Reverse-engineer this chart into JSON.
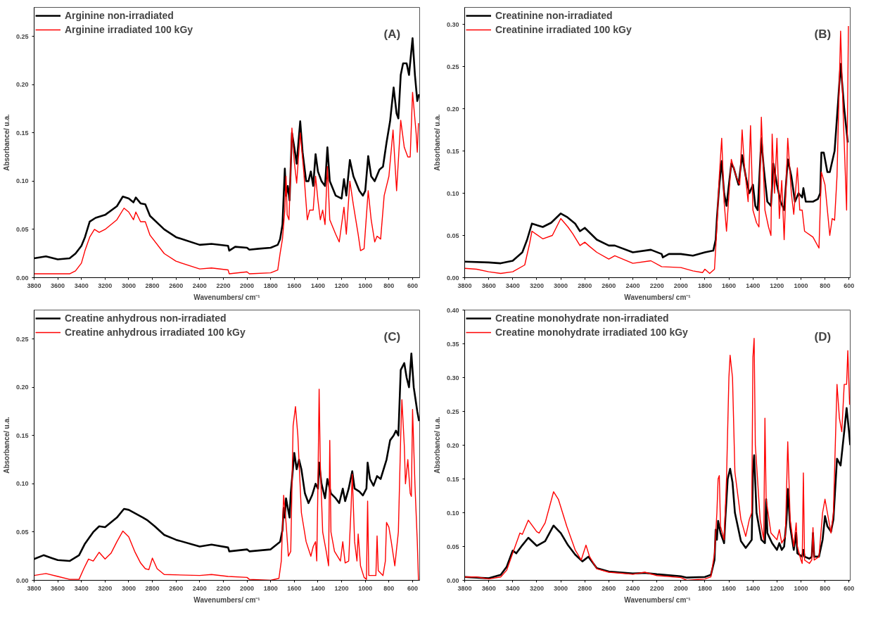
{
  "chart_data": [
    {
      "type": "line",
      "title": null,
      "annotations": [
        "(A)"
      ],
      "xlabel": "Wavenumbers/ cm⁻¹",
      "ylabel": "Absorbance/ u.a.",
      "xlim": [
        3800,
        540
      ],
      "ylim": [
        0,
        0.28
      ],
      "xticks": [
        3800,
        3600,
        3400,
        3200,
        3000,
        2800,
        2600,
        2400,
        2200,
        2000,
        1800,
        1600,
        1400,
        1200,
        1000,
        800,
        600
      ],
      "yticks": [
        {
          "value": 0,
          "label": "0.00"
        },
        0.05,
        {
          "value": 0.1,
          "label": "0.10"
        },
        0.15,
        {
          "value": 0.2,
          "label": "0.20"
        },
        0.25
      ],
      "grid": false,
      "legend": "top left",
      "line_style": "solid",
      "series": [
        {
          "name": "Arginine non-irradiated",
          "color": "#000000",
          "x": [
            3800,
            3700,
            3600,
            3500,
            3450,
            3400,
            3370,
            3330,
            3280,
            3200,
            3100,
            3050,
            3000,
            2960,
            2940,
            2900,
            2860,
            2820,
            2700,
            2600,
            2400,
            2300,
            2160,
            2150,
            2100,
            2000,
            1980,
            1900,
            1800,
            1740,
            1720,
            1700,
            1680,
            1670,
            1655,
            1640,
            1620,
            1600,
            1580,
            1550,
            1530,
            1500,
            1480,
            1460,
            1440,
            1420,
            1400,
            1370,
            1340,
            1320,
            1300,
            1250,
            1200,
            1180,
            1160,
            1130,
            1100,
            1050,
            1020,
            1000,
            975,
            950,
            920,
            880,
            850,
            820,
            790,
            760,
            735,
            720,
            700,
            680,
            650,
            630,
            600,
            580,
            560,
            545
          ],
          "values": [
            0.02,
            0.022,
            0.019,
            0.02,
            0.025,
            0.033,
            0.042,
            0.058,
            0.062,
            0.065,
            0.074,
            0.084,
            0.082,
            0.078,
            0.083,
            0.077,
            0.076,
            0.064,
            0.05,
            0.042,
            0.034,
            0.035,
            0.033,
            0.028,
            0.032,
            0.031,
            0.029,
            0.03,
            0.031,
            0.034,
            0.04,
            0.055,
            0.113,
            0.085,
            0.095,
            0.08,
            0.15,
            0.135,
            0.118,
            0.162,
            0.13,
            0.1,
            0.1,
            0.11,
            0.095,
            0.128,
            0.11,
            0.1,
            0.095,
            0.135,
            0.1,
            0.085,
            0.082,
            0.102,
            0.085,
            0.122,
            0.105,
            0.09,
            0.085,
            0.09,
            0.126,
            0.105,
            0.1,
            0.112,
            0.115,
            0.14,
            0.162,
            0.197,
            0.17,
            0.165,
            0.21,
            0.222,
            0.222,
            0.21,
            0.248,
            0.21,
            0.183,
            0.19
          ]
        },
        {
          "name": "Arginine irradiated 100 kGy",
          "color": "#ff0000",
          "x": [
            3800,
            3600,
            3500,
            3450,
            3400,
            3370,
            3330,
            3290,
            3250,
            3200,
            3100,
            3040,
            3000,
            2960,
            2940,
            2900,
            2860,
            2820,
            2700,
            2600,
            2400,
            2300,
            2160,
            2150,
            2000,
            1980,
            1800,
            1740,
            1720,
            1700,
            1680,
            1670,
            1660,
            1645,
            1620,
            1600,
            1580,
            1550,
            1520,
            1490,
            1470,
            1440,
            1420,
            1400,
            1380,
            1360,
            1340,
            1320,
            1300,
            1250,
            1220,
            1180,
            1160,
            1130,
            1100,
            1060,
            1040,
            1010,
            975,
            950,
            920,
            900,
            870,
            840,
            800,
            765,
            735,
            700,
            670,
            640,
            620,
            600,
            570,
            560,
            550
          ],
          "values": [
            0.004,
            0.004,
            0.004,
            0.007,
            0.015,
            0.028,
            0.042,
            0.05,
            0.047,
            0.05,
            0.06,
            0.072,
            0.068,
            0.06,
            0.068,
            0.058,
            0.058,
            0.044,
            0.025,
            0.017,
            0.009,
            0.01,
            0.008,
            0.004,
            0.006,
            0.004,
            0.005,
            0.008,
            0.025,
            0.04,
            0.07,
            0.105,
            0.065,
            0.06,
            0.155,
            0.12,
            0.098,
            0.15,
            0.11,
            0.06,
            0.07,
            0.07,
            0.105,
            0.08,
            0.06,
            0.07,
            0.055,
            0.115,
            0.06,
            0.045,
            0.037,
            0.073,
            0.045,
            0.1,
            0.075,
            0.045,
            0.028,
            0.03,
            0.09,
            0.06,
            0.037,
            0.043,
            0.04,
            0.085,
            0.105,
            0.153,
            0.09,
            0.163,
            0.135,
            0.125,
            0.125,
            0.192,
            0.15,
            0.13,
            0.16
          ]
        }
      ]
    },
    {
      "type": "line",
      "title": null,
      "annotations": [
        "(B)"
      ],
      "xlabel": "Wavenumbers/ cm⁻¹",
      "ylabel": "Absorbance/ u.a.",
      "xlim": [
        3800,
        590
      ],
      "ylim": [
        0,
        0.32
      ],
      "xticks": [
        3800,
        3600,
        3400,
        3200,
        3000,
        2800,
        2600,
        2400,
        2200,
        2000,
        1800,
        1600,
        1400,
        1200,
        1000,
        800,
        600
      ],
      "yticks": [
        {
          "value": 0,
          "label": "0.00"
        },
        0.05,
        {
          "value": 0.1,
          "label": "0.10"
        },
        0.15,
        {
          "value": 0.2,
          "label": "0.20"
        },
        0.25,
        {
          "value": 0.3,
          "label": "0.30"
        }
      ],
      "grid": false,
      "legend": "top left",
      "line_style": "solid",
      "series": [
        {
          "name": "Creatinine non-irradiated",
          "color": "#000000",
          "x": [
            3800,
            3600,
            3500,
            3400,
            3320,
            3280,
            3240,
            3150,
            3080,
            3000,
            2950,
            2880,
            2840,
            2800,
            2700,
            2600,
            2550,
            2400,
            2250,
            2160,
            2150,
            2100,
            2000,
            1900,
            1800,
            1730,
            1710,
            1700,
            1680,
            1660,
            1640,
            1620,
            1580,
            1560,
            1520,
            1490,
            1460,
            1430,
            1400,
            1380,
            1360,
            1330,
            1310,
            1280,
            1250,
            1230,
            1200,
            1170,
            1140,
            1110,
            1080,
            1050,
            1020,
            990,
            980,
            960,
            900,
            860,
            840,
            830,
            810,
            780,
            760,
            720,
            690,
            670,
            640,
            610
          ],
          "values": [
            0.019,
            0.018,
            0.017,
            0.02,
            0.03,
            0.045,
            0.064,
            0.06,
            0.065,
            0.076,
            0.072,
            0.064,
            0.055,
            0.059,
            0.045,
            0.038,
            0.038,
            0.03,
            0.033,
            0.028,
            0.024,
            0.028,
            0.028,
            0.026,
            0.03,
            0.032,
            0.045,
            0.07,
            0.11,
            0.138,
            0.1,
            0.085,
            0.135,
            0.13,
            0.11,
            0.145,
            0.12,
            0.1,
            0.11,
            0.085,
            0.08,
            0.165,
            0.13,
            0.09,
            0.085,
            0.135,
            0.11,
            0.09,
            0.08,
            0.14,
            0.12,
            0.09,
            0.1,
            0.095,
            0.106,
            0.09,
            0.09,
            0.093,
            0.1,
            0.148,
            0.148,
            0.125,
            0.125,
            0.15,
            0.21,
            0.253,
            0.2,
            0.16
          ]
        },
        {
          "name": "Creatinine irradiated 100 kGy",
          "color": "#ff0000",
          "x": [
            3800,
            3700,
            3600,
            3500,
            3400,
            3300,
            3260,
            3240,
            3150,
            3070,
            3000,
            2940,
            2900,
            2840,
            2800,
            2760,
            2700,
            2600,
            2550,
            2400,
            2250,
            2160,
            2000,
            1900,
            1820,
            1800,
            1760,
            1720,
            1700,
            1680,
            1660,
            1640,
            1620,
            1580,
            1540,
            1510,
            1490,
            1470,
            1440,
            1420,
            1400,
            1370,
            1350,
            1330,
            1300,
            1270,
            1250,
            1240,
            1220,
            1200,
            1180,
            1160,
            1140,
            1110,
            1080,
            1060,
            1030,
            1010,
            990,
            970,
            900,
            850,
            830,
            800,
            780,
            760,
            740,
            720,
            700,
            670,
            650,
            620,
            605
          ],
          "values": [
            0.011,
            0.01,
            0.007,
            0.005,
            0.007,
            0.015,
            0.04,
            0.055,
            0.046,
            0.05,
            0.07,
            0.06,
            0.052,
            0.038,
            0.042,
            0.037,
            0.03,
            0.022,
            0.026,
            0.017,
            0.02,
            0.013,
            0.012,
            0.008,
            0.006,
            0.01,
            0.005,
            0.01,
            0.06,
            0.12,
            0.165,
            0.09,
            0.055,
            0.14,
            0.12,
            0.11,
            0.175,
            0.13,
            0.09,
            0.18,
            0.08,
            0.065,
            0.06,
            0.19,
            0.08,
            0.06,
            0.05,
            0.17,
            0.1,
            0.165,
            0.07,
            0.115,
            0.045,
            0.165,
            0.1,
            0.075,
            0.13,
            0.08,
            0.08,
            0.055,
            0.048,
            0.035,
            0.125,
            0.11,
            0.08,
            0.05,
            0.07,
            0.068,
            0.12,
            0.292,
            0.2,
            0.08,
            0.298
          ]
        }
      ]
    },
    {
      "type": "line",
      "title": null,
      "annotations": [
        "(C)"
      ],
      "xlabel": "Wavenumbers/ cm⁻¹",
      "ylabel": "Absorbance/ u.a.",
      "xlim": [
        3800,
        540
      ],
      "ylim": [
        0,
        0.28
      ],
      "xticks": [
        3800,
        3600,
        3400,
        3200,
        3000,
        2800,
        2600,
        2400,
        2200,
        2000,
        1800,
        1600,
        1400,
        1200,
        1000,
        800,
        600
      ],
      "yticks": [
        {
          "value": 0,
          "label": "0.00"
        },
        0.05,
        {
          "value": 0.1,
          "label": "0.10"
        },
        0.15,
        {
          "value": 0.2,
          "label": "0.20"
        },
        0.25
      ],
      "grid": false,
      "legend": "top left",
      "line_style": "solid",
      "series": [
        {
          "name": "Creatine anhydrous non-irradiated",
          "color": "#000000",
          "x": [
            3800,
            3720,
            3650,
            3600,
            3500,
            3420,
            3370,
            3300,
            3250,
            3200,
            3100,
            3040,
            3000,
            2940,
            2880,
            2840,
            2780,
            2700,
            2600,
            2400,
            2300,
            2160,
            2150,
            2000,
            1980,
            1800,
            1720,
            1700,
            1690,
            1680,
            1670,
            1640,
            1630,
            1600,
            1580,
            1560,
            1540,
            1510,
            1480,
            1450,
            1420,
            1400,
            1390,
            1370,
            1340,
            1320,
            1290,
            1250,
            1220,
            1190,
            1170,
            1140,
            1110,
            1090,
            1050,
            1020,
            990,
            980,
            960,
            930,
            900,
            870,
            820,
            790,
            760,
            740,
            720,
            700,
            670,
            650,
            630,
            610,
            590,
            560,
            545
          ],
          "values": [
            0.022,
            0.026,
            0.023,
            0.021,
            0.02,
            0.026,
            0.038,
            0.05,
            0.056,
            0.055,
            0.065,
            0.074,
            0.073,
            0.069,
            0.065,
            0.062,
            0.056,
            0.047,
            0.042,
            0.035,
            0.037,
            0.034,
            0.03,
            0.032,
            0.03,
            0.032,
            0.04,
            0.052,
            0.075,
            0.065,
            0.085,
            0.065,
            0.09,
            0.132,
            0.115,
            0.125,
            0.115,
            0.09,
            0.08,
            0.088,
            0.1,
            0.095,
            0.122,
            0.1,
            0.085,
            0.105,
            0.09,
            0.085,
            0.08,
            0.095,
            0.082,
            0.095,
            0.113,
            0.095,
            0.092,
            0.088,
            0.095,
            0.122,
            0.105,
            0.098,
            0.108,
            0.105,
            0.125,
            0.145,
            0.15,
            0.155,
            0.15,
            0.218,
            0.225,
            0.21,
            0.2,
            0.235,
            0.2,
            0.175,
            0.165
          ]
        },
        {
          "name": "Creatine anhydrous irradiated 100 kGy",
          "color": "#ff0000",
          "x": [
            3800,
            3700,
            3600,
            3500,
            3420,
            3380,
            3340,
            3300,
            3250,
            3200,
            3150,
            3100,
            3050,
            3000,
            2950,
            2900,
            2860,
            2830,
            2800,
            2760,
            2700,
            2400,
            2300,
            2160,
            2000,
            1980,
            1800,
            1730,
            1710,
            1690,
            1670,
            1650,
            1630,
            1610,
            1590,
            1570,
            1540,
            1500,
            1460,
            1440,
            1420,
            1410,
            1400,
            1390,
            1380,
            1360,
            1330,
            1310,
            1300,
            1290,
            1260,
            1210,
            1190,
            1170,
            1140,
            1120,
            1110,
            1090,
            1070,
            1060,
            1040,
            1010,
            990,
            980,
            970,
            930,
            910,
            900,
            890,
            850,
            830,
            820,
            800,
            780,
            750,
            720,
            700,
            690,
            670,
            660,
            640,
            620,
            610,
            600,
            580,
            560,
            550
          ],
          "values": [
            0.005,
            0.007,
            0.004,
            0.001,
            0.001,
            0.012,
            0.022,
            0.02,
            0.029,
            0.022,
            0.028,
            0.04,
            0.051,
            0.045,
            0.03,
            0.018,
            0.012,
            0.011,
            0.023,
            0.012,
            0.006,
            0.005,
            0.006,
            0.004,
            0.003,
            0.001,
            0.0,
            0.002,
            0.02,
            0.088,
            0.06,
            0.025,
            0.03,
            0.16,
            0.18,
            0.15,
            0.07,
            0.04,
            0.025,
            0.035,
            0.04,
            0.02,
            0.1,
            0.198,
            0.12,
            0.05,
            0.03,
            0.015,
            0.145,
            0.05,
            0.03,
            0.02,
            0.04,
            0.018,
            0.02,
            0.075,
            0.11,
            0.04,
            0.02,
            0.048,
            0.015,
            0.003,
            0.001,
            0.082,
            0.005,
            0.005,
            0.005,
            0.046,
            0.01,
            0.005,
            0.02,
            0.06,
            0.055,
            0.04,
            0.015,
            0.05,
            0.15,
            0.187,
            0.14,
            0.1,
            0.125,
            0.09,
            0.087,
            0.177,
            0.1,
            0.04,
            0.0
          ]
        }
      ]
    },
    {
      "type": "line",
      "title": null,
      "annotations": [
        "(D)"
      ],
      "xlabel": "Wavenumbers/ cm⁻¹",
      "ylabel": "Absorbance/ u.a.",
      "xlim": [
        3800,
        590
      ],
      "ylim": [
        0,
        0.4
      ],
      "xticks": [
        3800,
        3600,
        3400,
        3200,
        3000,
        2800,
        2600,
        2400,
        2200,
        2000,
        1800,
        1600,
        1400,
        1200,
        1000,
        800,
        600
      ],
      "yticks": [
        {
          "value": 0,
          "label": "0.00"
        },
        0.05,
        {
          "value": 0.1,
          "label": "0.10"
        },
        0.15,
        {
          "value": 0.2,
          "label": "0.20"
        },
        0.25,
        {
          "value": 0.3,
          "label": "0.30"
        },
        0.35,
        {
          "value": 0.4,
          "label": "0.40"
        }
      ],
      "grid": false,
      "legend": "top left",
      "line_style": "solid",
      "series": [
        {
          "name": "Creatine monohydrate non-irradiated",
          "color": "#000000",
          "x": [
            3800,
            3600,
            3500,
            3450,
            3400,
            3370,
            3320,
            3270,
            3200,
            3130,
            3060,
            3000,
            2940,
            2880,
            2820,
            2770,
            2700,
            2600,
            2400,
            2300,
            2200,
            2000,
            1950,
            1800,
            1750,
            1720,
            1710,
            1700,
            1690,
            1670,
            1650,
            1640,
            1630,
            1610,
            1590,
            1570,
            1550,
            1500,
            1460,
            1430,
            1410,
            1400,
            1390,
            1370,
            1330,
            1300,
            1290,
            1280,
            1240,
            1200,
            1180,
            1160,
            1140,
            1120,
            1110,
            1090,
            1060,
            1040,
            1030,
            990,
            980,
            970,
            930,
            910,
            900,
            890,
            850,
            820,
            800,
            780,
            750,
            730,
            700,
            670,
            640,
            620,
            600,
            590
          ],
          "values": [
            0.005,
            0.003,
            0.008,
            0.02,
            0.044,
            0.04,
            0.052,
            0.063,
            0.051,
            0.058,
            0.081,
            0.07,
            0.052,
            0.038,
            0.028,
            0.035,
            0.018,
            0.013,
            0.01,
            0.011,
            0.009,
            0.006,
            0.004,
            0.005,
            0.008,
            0.03,
            0.075,
            0.06,
            0.088,
            0.07,
            0.06,
            0.055,
            0.09,
            0.15,
            0.165,
            0.145,
            0.1,
            0.058,
            0.048,
            0.055,
            0.06,
            0.16,
            0.185,
            0.1,
            0.06,
            0.055,
            0.12,
            0.07,
            0.055,
            0.045,
            0.055,
            0.045,
            0.05,
            0.09,
            0.135,
            0.08,
            0.045,
            0.07,
            0.04,
            0.035,
            0.045,
            0.035,
            0.032,
            0.035,
            0.07,
            0.035,
            0.035,
            0.06,
            0.095,
            0.08,
            0.072,
            0.09,
            0.18,
            0.17,
            0.22,
            0.255,
            0.22,
            0.2
          ]
        },
        {
          "name": "Creatine monohydrate irradiated 100 kGy",
          "color": "#ff0000",
          "x": [
            3800,
            3700,
            3600,
            3500,
            3450,
            3400,
            3340,
            3320,
            3270,
            3200,
            3180,
            3130,
            3060,
            3020,
            2950,
            2880,
            2830,
            2790,
            2760,
            2700,
            2600,
            2400,
            2300,
            2200,
            2000,
            1950,
            1800,
            1750,
            1720,
            1700,
            1690,
            1680,
            1670,
            1640,
            1620,
            1600,
            1590,
            1570,
            1550,
            1500,
            1460,
            1430,
            1410,
            1400,
            1390,
            1380,
            1340,
            1310,
            1300,
            1290,
            1250,
            1200,
            1180,
            1160,
            1130,
            1110,
            1090,
            1060,
            1040,
            1030,
            1000,
            990,
            980,
            970,
            930,
            910,
            900,
            890,
            850,
            820,
            800,
            780,
            750,
            730,
            700,
            680,
            660,
            640,
            620,
            610,
            595
          ],
          "values": [
            0.005,
            0.005,
            0.002,
            0.005,
            0.015,
            0.04,
            0.07,
            0.068,
            0.089,
            0.072,
            0.07,
            0.085,
            0.131,
            0.12,
            0.08,
            0.045,
            0.03,
            0.052,
            0.035,
            0.017,
            0.012,
            0.009,
            0.012,
            0.007,
            0.004,
            0.0,
            0.002,
            0.005,
            0.04,
            0.1,
            0.15,
            0.155,
            0.08,
            0.06,
            0.15,
            0.3,
            0.333,
            0.3,
            0.16,
            0.09,
            0.065,
            0.09,
            0.1,
            0.33,
            0.358,
            0.2,
            0.09,
            0.06,
            0.24,
            0.12,
            0.07,
            0.06,
            0.075,
            0.055,
            0.065,
            0.205,
            0.09,
            0.05,
            0.085,
            0.05,
            0.03,
            0.025,
            0.159,
            0.03,
            0.025,
            0.03,
            0.078,
            0.03,
            0.035,
            0.1,
            0.12,
            0.1,
            0.07,
            0.1,
            0.29,
            0.24,
            0.22,
            0.29,
            0.29,
            0.34,
            0.26
          ]
        }
      ]
    }
  ]
}
